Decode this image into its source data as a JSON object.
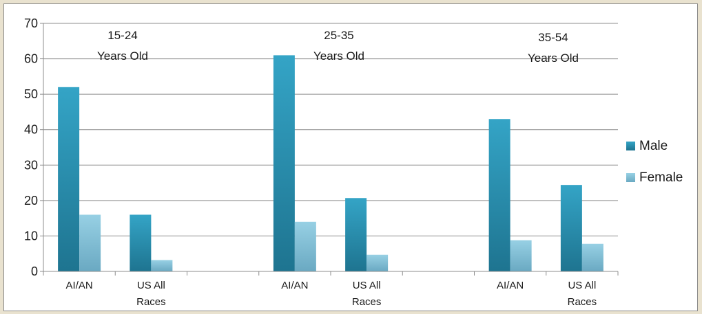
{
  "chart_data": {
    "type": "bar",
    "ylim": [
      0,
      70
    ],
    "yticks": [
      0,
      10,
      20,
      30,
      40,
      50,
      60,
      70
    ],
    "grid": true,
    "legend_position": "right",
    "categories": [
      {
        "label": "AI/AN",
        "label_lines": [
          "AI/AN"
        ]
      },
      {
        "label": "US All Races",
        "label_lines": [
          "US All",
          "Races"
        ]
      },
      {
        "label": "",
        "label_lines": []
      },
      {
        "label": "AI/AN",
        "label_lines": [
          "AI/AN"
        ]
      },
      {
        "label": "US All Races",
        "label_lines": [
          "US All",
          "Races"
        ]
      },
      {
        "label": "",
        "label_lines": []
      },
      {
        "label": "AI/AN",
        "label_lines": [
          "AI/AN"
        ]
      },
      {
        "label": "US All Races",
        "label_lines": [
          "US All",
          "Races"
        ]
      }
    ],
    "series": [
      {
        "name": "Male",
        "color": "#2a92b4",
        "values": [
          52,
          16,
          null,
          61,
          20.7,
          null,
          43,
          24.4
        ]
      },
      {
        "name": "Female",
        "color": "#8ac6dc",
        "values": [
          16,
          3.2,
          null,
          14,
          4.7,
          null,
          8.8,
          7.8
        ]
      }
    ],
    "group_labels": [
      {
        "lines": [
          "15-24",
          "Years Old"
        ],
        "category_index": 0
      },
      {
        "lines": [
          "25-35",
          "Years Old"
        ],
        "category_index": 3
      },
      {
        "lines": [
          "35-54",
          "Years Old"
        ],
        "category_index": 6
      }
    ]
  }
}
